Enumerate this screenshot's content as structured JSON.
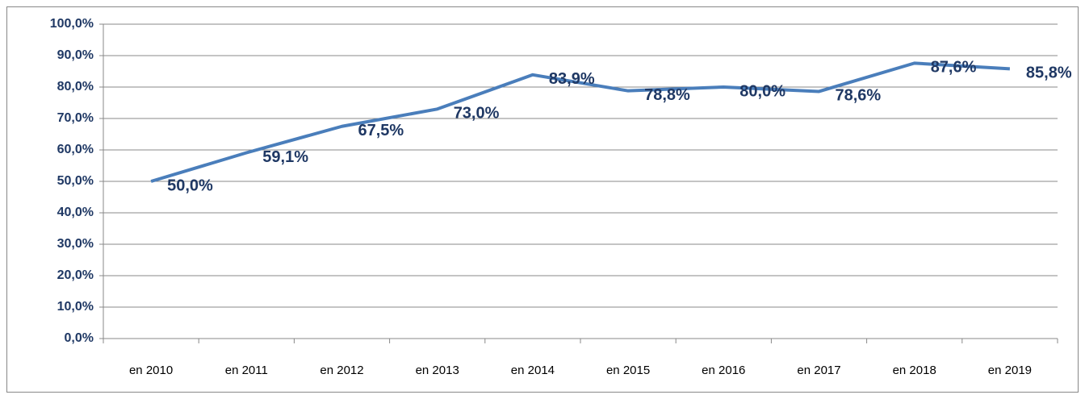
{
  "chart_data": {
    "type": "line",
    "categories": [
      "en 2010",
      "en 2011",
      "en 2012",
      "en 2013",
      "en 2014",
      "en 2015",
      "en 2016",
      "en 2017",
      "en 2018",
      "en 2019"
    ],
    "series": [
      {
        "color": "#4a7ebb",
        "values": [
          50.0,
          59.1,
          67.5,
          73.0,
          83.9,
          78.8,
          80.0,
          78.6,
          87.6,
          85.8
        ],
        "value_labels": [
          "50,0%",
          "59,1%",
          "67,5%",
          "73,0%",
          "83,9%",
          "78,8%",
          "80,0%",
          "78,6%",
          "87,6%",
          "85,8%"
        ]
      }
    ],
    "ylim": [
      0,
      100
    ],
    "yticks": [
      {
        "value": 0,
        "label": "0,0%"
      },
      {
        "value": 10,
        "label": "10,0%"
      },
      {
        "value": 20,
        "label": "20,0%"
      },
      {
        "value": 30,
        "label": "30,0%"
      },
      {
        "value": 40,
        "label": "40,0%"
      },
      {
        "value": 50,
        "label": "50,0%"
      },
      {
        "value": 60,
        "label": "60,0%"
      },
      {
        "value": 70,
        "label": "70,0%"
      },
      {
        "value": 80,
        "label": "80,0%"
      },
      {
        "value": 90,
        "label": "90,0%"
      },
      {
        "value": 100,
        "label": "100,0%"
      }
    ],
    "grid": true
  }
}
